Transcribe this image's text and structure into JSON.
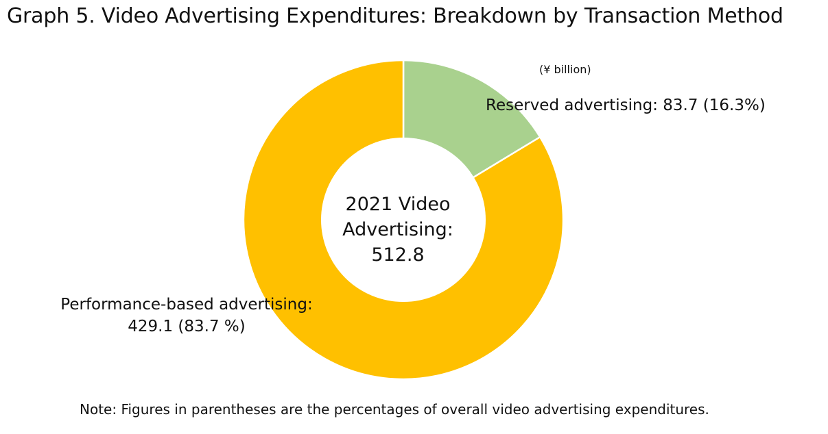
{
  "chart_data": {
    "type": "pie",
    "title": "Graph 5. Video Advertising Expenditures: Breakdown by Transaction Method",
    "unit": "(¥ billion)",
    "center_label": {
      "line1": "2021 Video",
      "line2": "Advertising:",
      "line3": "512.8"
    },
    "total": 512.8,
    "slices": [
      {
        "name": "Reserved advertising",
        "value": 83.7,
        "percent": 16.3,
        "color": "#a9d18e",
        "label_line1": "Reserved advertising:  83.7 (16.3%)"
      },
      {
        "name": "Performance-based advertising",
        "value": 429.1,
        "percent": 83.7,
        "color": "#ffc000",
        "label_line1": "Performance-based advertising:",
        "label_line2": "429.1 (83.7 %)"
      }
    ],
    "note": "Note: Figures in parentheses are the percentages of overall video advertising expenditures."
  }
}
